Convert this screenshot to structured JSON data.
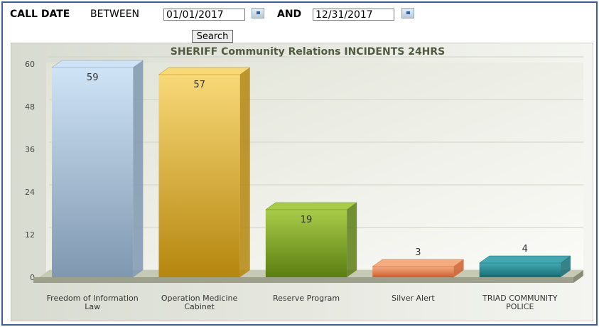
{
  "form": {
    "label_bold": "CALL DATE",
    "label_between": "BETWEEN",
    "start_date": "01/01/2017",
    "and": "AND",
    "end_date": "12/31/2017",
    "button": "Search"
  },
  "chart_data": {
    "type": "bar3d",
    "title": "SHERIFF Community Relations INCIDENTS 24HRS",
    "categories": [
      "Freedom of Information Law",
      "Operation Medicine Cabinet",
      "Reserve Program",
      "Silver Alert",
      "TRIAD COMMUNITY POLICE"
    ],
    "values": [
      59,
      57,
      19,
      3,
      4
    ],
    "colors": [
      [
        "#cfe3f6",
        "#7f98b0"
      ],
      [
        "#f8d978",
        "#b5860e"
      ],
      [
        "#a8cc48",
        "#5b7e12"
      ],
      [
        "#f4ab80",
        "#cf5f2c"
      ],
      [
        "#44a8b0",
        "#136c74"
      ]
    ],
    "ylim": [
      0,
      60
    ],
    "yticks": [
      0,
      12,
      24,
      36,
      48,
      60
    ],
    "grid": true
  }
}
